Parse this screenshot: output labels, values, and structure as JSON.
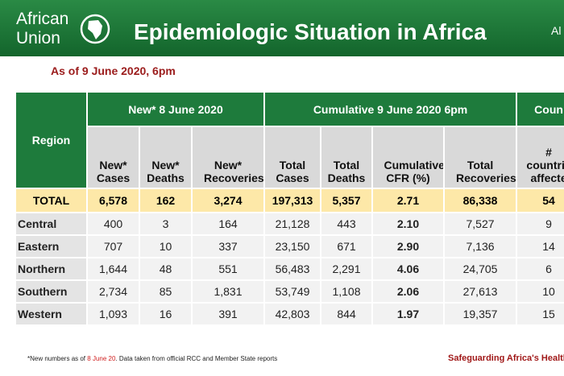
{
  "header": {
    "logo_line1": "African",
    "logo_line2": "Union",
    "title": "Epidemiologic Situation in Africa",
    "title_cut": "Al"
  },
  "subtitle": "As of 9 June 2020, 6pm",
  "table": {
    "region_header": "Region",
    "groups": [
      "New* 8 June 2020",
      "Cumulative 9 June 2020 6pm",
      "Coun"
    ],
    "columns": [
      "New* Cases",
      "New* Deaths",
      "New* Recoveries",
      "Total Cases",
      "Total Deaths",
      "Cumulative CFR (%)",
      "Total Recoveries",
      "# countrie affecte"
    ],
    "rows": [
      [
        "TOTAL",
        "6,578",
        "162",
        "3,274",
        "197,313",
        "5,357",
        "2.71",
        "86,338",
        "54"
      ],
      [
        "Central",
        "400",
        "3",
        "164",
        "21,128",
        "443",
        "2.10",
        "7,527",
        "9"
      ],
      [
        "Eastern",
        "707",
        "10",
        "337",
        "23,150",
        "671",
        "2.90",
        "7,136",
        "14"
      ],
      [
        "Northern",
        "1,644",
        "48",
        "551",
        "56,483",
        "2,291",
        "4.06",
        "24,705",
        "6"
      ],
      [
        "Southern",
        "2,734",
        "85",
        "1,831",
        "53,749",
        "1,108",
        "2.06",
        "27,613",
        "10"
      ],
      [
        "Western",
        "1,093",
        "16",
        "391",
        "42,803",
        "844",
        "1.97",
        "19,357",
        "15"
      ]
    ]
  },
  "footer": {
    "note_start": "*New numbers as of",
    "note_date": "8 June 20",
    "note_end": ". Data taken from official RCC and Member State reports",
    "slogan": "Safeguarding Africa's Health"
  }
}
